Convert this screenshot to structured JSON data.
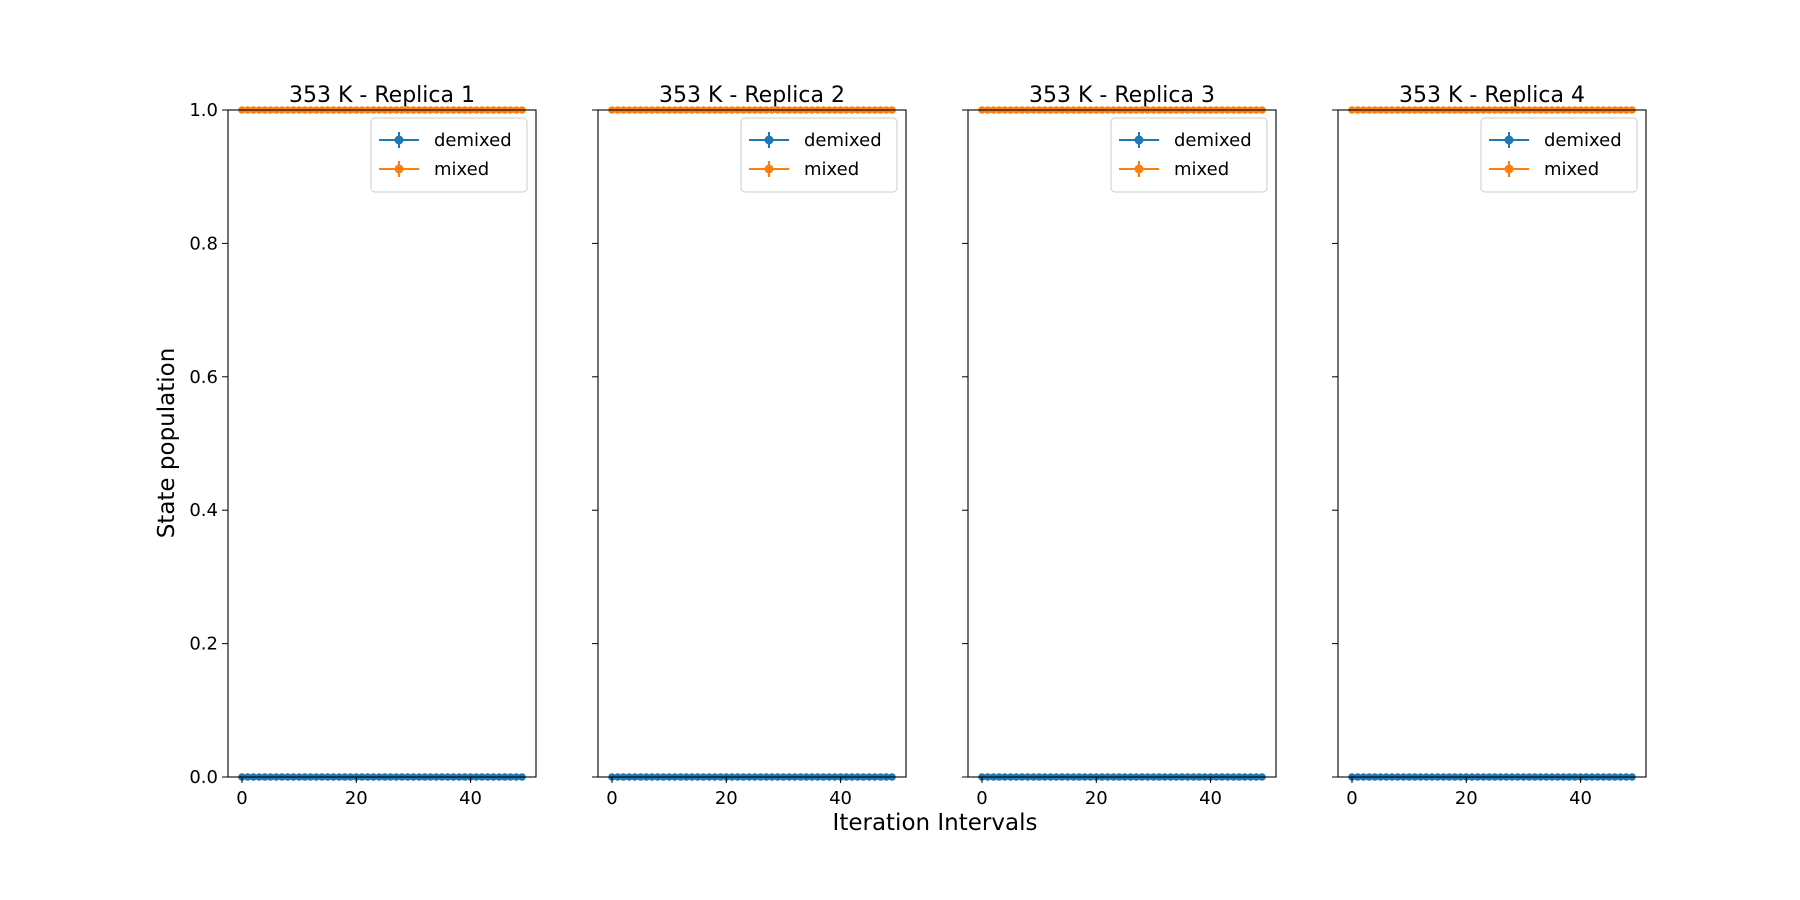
{
  "figure": {
    "xlabel": "Iteration Intervals",
    "ylabel": "State population"
  },
  "colors": {
    "demixed": "#1f77b4",
    "mixed": "#ff7f0e",
    "axis": "#000000",
    "background": "#ffffff"
  },
  "chart_data": [
    {
      "type": "line",
      "title": "353 K - Replica 1",
      "xlabel": "Iteration Intervals",
      "ylabel": "State population",
      "x": {
        "start": 0,
        "end": 49,
        "step": 1
      },
      "xlim": [
        -2.45,
        51.45
      ],
      "ylim": [
        0.0,
        1.0
      ],
      "xticks": [
        0,
        20,
        40
      ],
      "yticks": [
        0.0,
        0.2,
        0.4,
        0.6,
        0.8,
        1.0
      ],
      "ytick_labels": [
        "0.0",
        "0.2",
        "0.4",
        "0.6",
        "0.8",
        "1.0"
      ],
      "grid": false,
      "legend": "upper right",
      "series": [
        {
          "name": "demixed",
          "value": 0.0,
          "error": 0.0,
          "marker": "circle"
        },
        {
          "name": "mixed",
          "value": 1.0,
          "error": 0.0,
          "marker": "circle"
        }
      ]
    },
    {
      "type": "line",
      "title": "353 K - Replica 2",
      "x": {
        "start": 0,
        "end": 49,
        "step": 1
      },
      "xlim": [
        -2.45,
        51.45
      ],
      "ylim": [
        0.0,
        1.0
      ],
      "xticks": [
        0,
        20,
        40
      ],
      "grid": false,
      "legend": "upper right",
      "series": [
        {
          "name": "demixed",
          "value": 0.0,
          "error": 0.0,
          "marker": "circle"
        },
        {
          "name": "mixed",
          "value": 1.0,
          "error": 0.0,
          "marker": "circle"
        }
      ]
    },
    {
      "type": "line",
      "title": "353 K - Replica 3",
      "x": {
        "start": 0,
        "end": 49,
        "step": 1
      },
      "xlim": [
        -2.45,
        51.45
      ],
      "ylim": [
        0.0,
        1.0
      ],
      "xticks": [
        0,
        20,
        40
      ],
      "grid": false,
      "legend": "upper right",
      "series": [
        {
          "name": "demixed",
          "value": 0.0,
          "error": 0.0,
          "marker": "circle"
        },
        {
          "name": "mixed",
          "value": 1.0,
          "error": 0.0,
          "marker": "circle"
        }
      ]
    },
    {
      "type": "line",
      "title": "353 K - Replica 4",
      "x": {
        "start": 0,
        "end": 49,
        "step": 1
      },
      "xlim": [
        -2.45,
        51.45
      ],
      "ylim": [
        0.0,
        1.0
      ],
      "xticks": [
        0,
        20,
        40
      ],
      "grid": false,
      "legend": "upper right",
      "series": [
        {
          "name": "demixed",
          "value": 0.0,
          "error": 0.0,
          "marker": "circle"
        },
        {
          "name": "mixed",
          "value": 1.0,
          "error": 0.0,
          "marker": "circle"
        }
      ]
    }
  ]
}
